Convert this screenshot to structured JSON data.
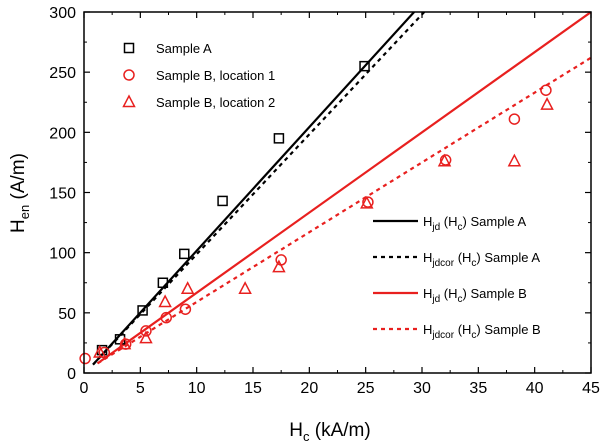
{
  "chart_data": {
    "type": "scatter",
    "x_axis": {
      "label_main": "H",
      "label_sub": "c",
      "label_unit": " (kA/m)",
      "range": [
        0,
        45
      ],
      "ticks": [
        0,
        5,
        10,
        15,
        20,
        25,
        30,
        35,
        40,
        45
      ]
    },
    "y_axis": {
      "label_main": "H",
      "label_sub": "en",
      "label_unit": " (A/m)",
      "range": [
        0,
        300
      ],
      "ticks": [
        0,
        50,
        100,
        150,
        200,
        250,
        300
      ]
    },
    "grid": false,
    "legend_top_left": "top-left",
    "legend_bottom_right": "bottom-right",
    "series": [
      {
        "name": "Sample A",
        "marker": "square",
        "color": "#000000",
        "x": [
          1.6,
          3.2,
          5.2,
          7.0,
          8.9,
          12.3,
          17.3,
          24.9
        ],
        "y": [
          19,
          28,
          52,
          75,
          99,
          143,
          195,
          255
        ]
      },
      {
        "name": "Sample B, location 1",
        "marker": "circle",
        "color": "#e8201f",
        "x": [
          0.1,
          1.8,
          3.7,
          5.5,
          7.3,
          9.0,
          17.5,
          25.2,
          32.1,
          38.2,
          41.0
        ],
        "y": [
          12,
          17,
          24,
          35,
          46,
          53,
          94,
          142,
          177,
          211,
          235
        ]
      },
      {
        "name": "Sample B, location 2",
        "marker": "triangle",
        "color": "#e8201f",
        "x": [
          1.4,
          3.6,
          5.5,
          7.2,
          9.2,
          14.3,
          17.3,
          25.1,
          32.0,
          38.2,
          41.1
        ],
        "y": [
          17,
          24,
          29,
          59,
          70,
          70,
          88,
          141,
          176,
          176,
          223
        ]
      }
    ],
    "lines": [
      {
        "name_main": "H",
        "name_sub1": "jd",
        "name_mid": " (H",
        "name_sub2": "c",
        "name_tail": ") Sample A",
        "style": "solid",
        "color": "#000000",
        "x": [
          0.8,
          29.3
        ],
        "y": [
          7,
          300
        ]
      },
      {
        "name_main": "H",
        "name_sub1": "jdcor",
        "name_mid": " (H",
        "name_sub2": "c",
        "name_tail": ") Sample A",
        "style": "dotted",
        "color": "#000000",
        "x": [
          0.8,
          30.2
        ],
        "y": [
          7,
          300
        ]
      },
      {
        "name_main": "H",
        "name_sub1": "jd",
        "name_mid": " (H",
        "name_sub2": "c",
        "name_tail": ") Sample B",
        "style": "solid",
        "color": "#e8201f",
        "x": [
          1.2,
          45
        ],
        "y": [
          8,
          300
        ]
      },
      {
        "name_main": "H",
        "name_sub1": "jdcor",
        "name_mid": " (H",
        "name_sub2": "c",
        "name_tail": ") Sample B",
        "style": "dotted",
        "color": "#e8201f",
        "x": [
          1.2,
          45
        ],
        "y": [
          8,
          262
        ]
      }
    ]
  }
}
